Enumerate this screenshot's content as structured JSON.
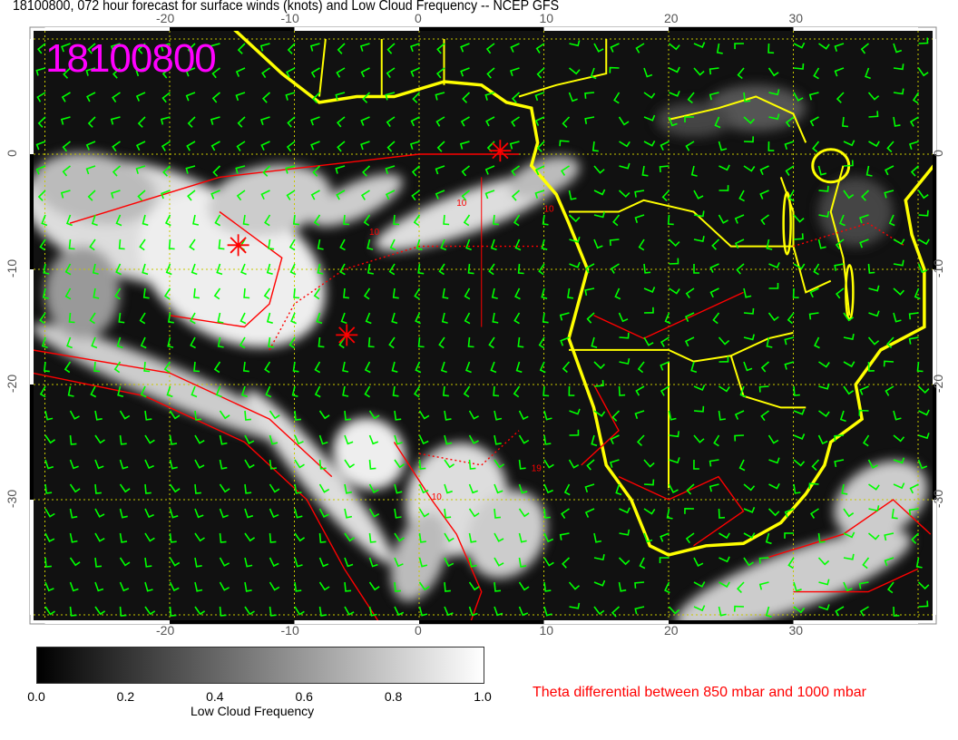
{
  "title": "18100800, 072 hour forecast for surface winds (knots) and Low Cloud Frequency -- NCEP GFS",
  "stamp": "18100800",
  "map": {
    "projection": "cylindrical",
    "lon_range": [
      -31,
      41
    ],
    "lat_range": [
      -40.5,
      10.7
    ],
    "lon_ticks": [
      "-20",
      "-10",
      "0",
      "10",
      "20",
      "30"
    ],
    "lat_ticks": [
      "0",
      "-10",
      "-20",
      "-30"
    ],
    "colors": {
      "coastline": "#ffff00",
      "wind_barbs": "#00ff00",
      "theta_contours": "#ff0000",
      "gridlines": "#c8c800"
    },
    "contour_labels": [
      "10",
      "10",
      "10",
      "10",
      "19"
    ],
    "markers": [
      {
        "lon": 6.5,
        "lat": 0.3
      },
      {
        "lon": -14.5,
        "lat": -7.9
      },
      {
        "lon": -5.8,
        "lat": -15.7
      }
    ]
  },
  "colorbar": {
    "label": "Low Cloud Frequency",
    "ticks": [
      "0.0",
      "0.2",
      "0.4",
      "0.6",
      "0.8",
      "1.0"
    ],
    "range": [
      0,
      1
    ],
    "colormap": "black-to-white"
  },
  "legend_text": "Theta differential between 850 mbar and 1000 mbar"
}
